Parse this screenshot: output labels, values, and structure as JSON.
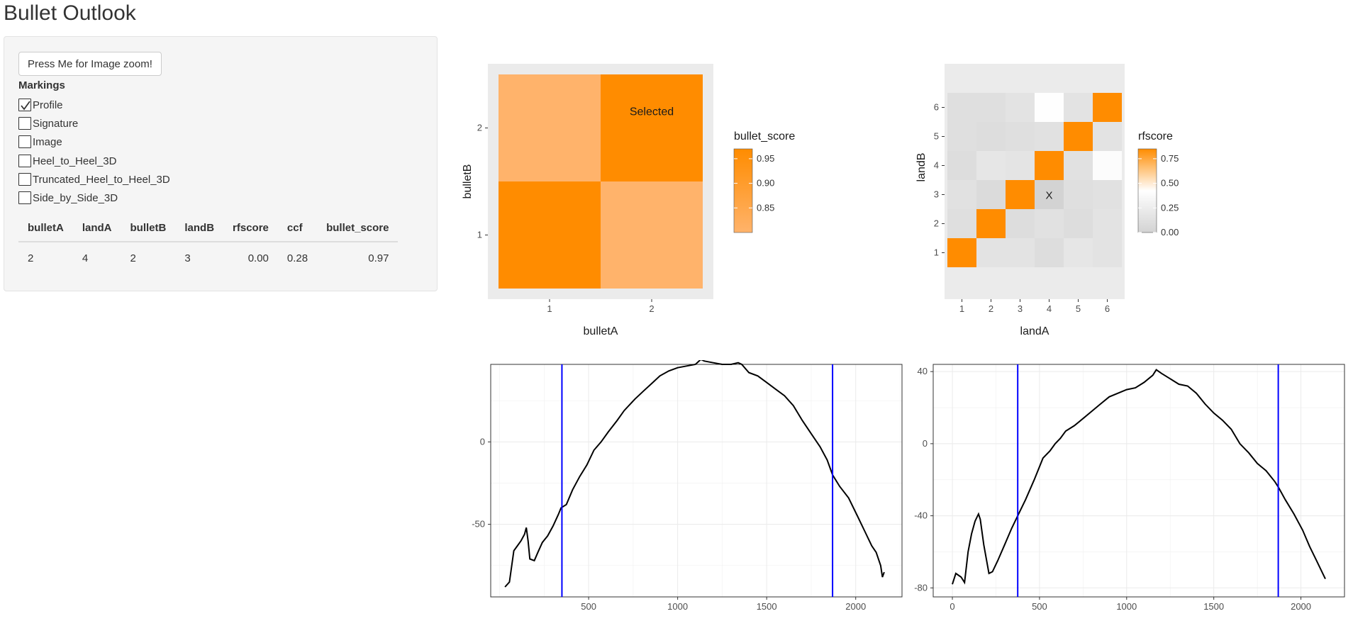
{
  "app": {
    "title": "Bullet Outlook"
  },
  "sidebar": {
    "zoom_button_label": "Press Me for Image zoom!",
    "markings_label": "Markings",
    "checkboxes": [
      {
        "label": "Profile",
        "checked": true
      },
      {
        "label": "Signature",
        "checked": false
      },
      {
        "label": "Image",
        "checked": false
      },
      {
        "label": "Heel_to_Heel_3D",
        "checked": false
      },
      {
        "label": "Truncated_Heel_to_Heel_3D",
        "checked": false
      },
      {
        "label": "Side_by_Side_3D",
        "checked": false
      }
    ],
    "table": {
      "headers": [
        "bulletA",
        "landA",
        "bulletB",
        "landB",
        "rfscore",
        "ccf",
        "bullet_score"
      ],
      "rows": [
        [
          "2",
          "4",
          "2",
          "3",
          "0.00",
          "0.28",
          "0.97"
        ]
      ]
    }
  },
  "colors": {
    "accent": "#ff8c00",
    "mid": "#ffffff",
    "low": "#d3d3d3",
    "vline": "#0000ff"
  },
  "chart_data": [
    {
      "type": "heatmap",
      "xlabel": "bulletA",
      "ylabel": "bulletB",
      "x_ticks": [
        "1",
        "2"
      ],
      "y_ticks": [
        "1",
        "2"
      ],
      "cells": [
        {
          "x": 1,
          "y": 1,
          "value": 0.97
        },
        {
          "x": 2,
          "y": 1,
          "value": 0.8
        },
        {
          "x": 1,
          "y": 2,
          "value": 0.8
        },
        {
          "x": 2,
          "y": 2,
          "value": 0.97
        }
      ],
      "annotation": {
        "x": 2,
        "y": 2,
        "text": "Selected"
      },
      "legend": {
        "title": "bullet_score",
        "ticks": [
          "0.95",
          "0.90",
          "0.85"
        ],
        "tick_values": [
          0.95,
          0.9,
          0.85
        ],
        "range": [
          0.8,
          0.97
        ]
      }
    },
    {
      "type": "heatmap",
      "xlabel": "landA",
      "ylabel": "landB",
      "x_ticks": [
        "1",
        "2",
        "3",
        "4",
        "5",
        "6"
      ],
      "y_ticks": [
        "1",
        "2",
        "3",
        "4",
        "5",
        "6"
      ],
      "matrix_by_landB": [
        [
          0.85,
          0.15,
          0.15,
          0.1,
          0.18,
          0.15
        ],
        [
          0.12,
          0.85,
          0.1,
          0.14,
          0.1,
          0.15
        ],
        [
          0.14,
          0.08,
          0.85,
          0.0,
          0.12,
          0.14
        ],
        [
          0.1,
          0.18,
          0.16,
          0.85,
          0.14,
          0.4
        ],
        [
          0.12,
          0.1,
          0.12,
          0.14,
          0.85,
          0.15
        ],
        [
          0.12,
          0.12,
          0.15,
          0.42,
          0.15,
          0.85
        ]
      ],
      "annotation": {
        "x": 4,
        "y": 3,
        "text": "X"
      },
      "legend": {
        "title": "rfscore",
        "ticks": [
          "0.75",
          "0.50",
          "0.25",
          "0.00"
        ],
        "tick_values": [
          0.75,
          0.5,
          0.25,
          0.0
        ],
        "range": [
          0.0,
          0.85
        ]
      }
    },
    {
      "type": "line",
      "x_ticks": [
        "500",
        "1000",
        "1500",
        "2000"
      ],
      "y_ticks": [
        "0",
        "-50"
      ],
      "xlim": [
        -50,
        2260
      ],
      "ylim": [
        -94,
        47
      ],
      "vlines": [
        350,
        1870
      ],
      "points": [
        [
          30,
          -88
        ],
        [
          55,
          -85
        ],
        [
          80,
          -66
        ],
        [
          100,
          -63
        ],
        [
          120,
          -60
        ],
        [
          140,
          -56
        ],
        [
          150,
          -52
        ],
        [
          160,
          -60
        ],
        [
          170,
          -71
        ],
        [
          195,
          -72
        ],
        [
          215,
          -67
        ],
        [
          240,
          -61
        ],
        [
          270,
          -57
        ],
        [
          300,
          -51
        ],
        [
          330,
          -44
        ],
        [
          345,
          -40
        ],
        [
          375,
          -38
        ],
        [
          410,
          -29
        ],
        [
          450,
          -21
        ],
        [
          490,
          -14
        ],
        [
          530,
          -5
        ],
        [
          570,
          0
        ],
        [
          610,
          6
        ],
        [
          660,
          13
        ],
        [
          700,
          19
        ],
        [
          760,
          26
        ],
        [
          810,
          31
        ],
        [
          860,
          36
        ],
        [
          900,
          40
        ],
        [
          950,
          43
        ],
        [
          1000,
          45
        ],
        [
          1050,
          46
        ],
        [
          1100,
          47
        ],
        [
          1130,
          50
        ],
        [
          1150,
          49
        ],
        [
          1200,
          48
        ],
        [
          1250,
          47
        ],
        [
          1300,
          47
        ],
        [
          1340,
          48
        ],
        [
          1360,
          47
        ],
        [
          1400,
          42
        ],
        [
          1450,
          40
        ],
        [
          1500,
          36
        ],
        [
          1550,
          32
        ],
        [
          1600,
          28
        ],
        [
          1650,
          22
        ],
        [
          1700,
          13
        ],
        [
          1750,
          5
        ],
        [
          1800,
          -3
        ],
        [
          1840,
          -11
        ],
        [
          1870,
          -20
        ],
        [
          1910,
          -27
        ],
        [
          1960,
          -34
        ],
        [
          2010,
          -45
        ],
        [
          2050,
          -54
        ],
        [
          2090,
          -63
        ],
        [
          2115,
          -67
        ],
        [
          2140,
          -75
        ],
        [
          2150,
          -82
        ],
        [
          2160,
          -79
        ]
      ]
    },
    {
      "type": "line",
      "x_ticks": [
        "0",
        "500",
        "1000",
        "1500",
        "2000"
      ],
      "y_ticks": [
        "40",
        "0",
        "-40",
        "-80"
      ],
      "xlim": [
        -110,
        2250
      ],
      "ylim": [
        -85,
        44
      ],
      "vlines": [
        375,
        1870
      ],
      "points": [
        [
          0,
          -78
        ],
        [
          20,
          -72
        ],
        [
          50,
          -74
        ],
        [
          70,
          -77
        ],
        [
          90,
          -60
        ],
        [
          110,
          -50
        ],
        [
          130,
          -43
        ],
        [
          150,
          -39
        ],
        [
          160,
          -42
        ],
        [
          180,
          -56
        ],
        [
          210,
          -72
        ],
        [
          230,
          -71
        ],
        [
          260,
          -65
        ],
        [
          300,
          -56
        ],
        [
          340,
          -47
        ],
        [
          375,
          -40
        ],
        [
          420,
          -31
        ],
        [
          470,
          -20
        ],
        [
          520,
          -8
        ],
        [
          560,
          -4
        ],
        [
          590,
          0
        ],
        [
          620,
          3
        ],
        [
          650,
          7
        ],
        [
          700,
          10
        ],
        [
          750,
          14
        ],
        [
          800,
          18
        ],
        [
          850,
          22
        ],
        [
          900,
          26
        ],
        [
          950,
          28
        ],
        [
          1000,
          30
        ],
        [
          1050,
          31
        ],
        [
          1100,
          34
        ],
        [
          1150,
          38
        ],
        [
          1170,
          41
        ],
        [
          1200,
          39
        ],
        [
          1250,
          36
        ],
        [
          1300,
          33
        ],
        [
          1350,
          32
        ],
        [
          1400,
          28
        ],
        [
          1450,
          22
        ],
        [
          1500,
          17
        ],
        [
          1550,
          13
        ],
        [
          1600,
          8
        ],
        [
          1650,
          0
        ],
        [
          1700,
          -5
        ],
        [
          1750,
          -11
        ],
        [
          1800,
          -15
        ],
        [
          1850,
          -21
        ],
        [
          1870,
          -24
        ],
        [
          1910,
          -31
        ],
        [
          1960,
          -39
        ],
        [
          2010,
          -48
        ],
        [
          2050,
          -57
        ],
        [
          2090,
          -65
        ],
        [
          2120,
          -71
        ],
        [
          2140,
          -75
        ]
      ]
    }
  ]
}
